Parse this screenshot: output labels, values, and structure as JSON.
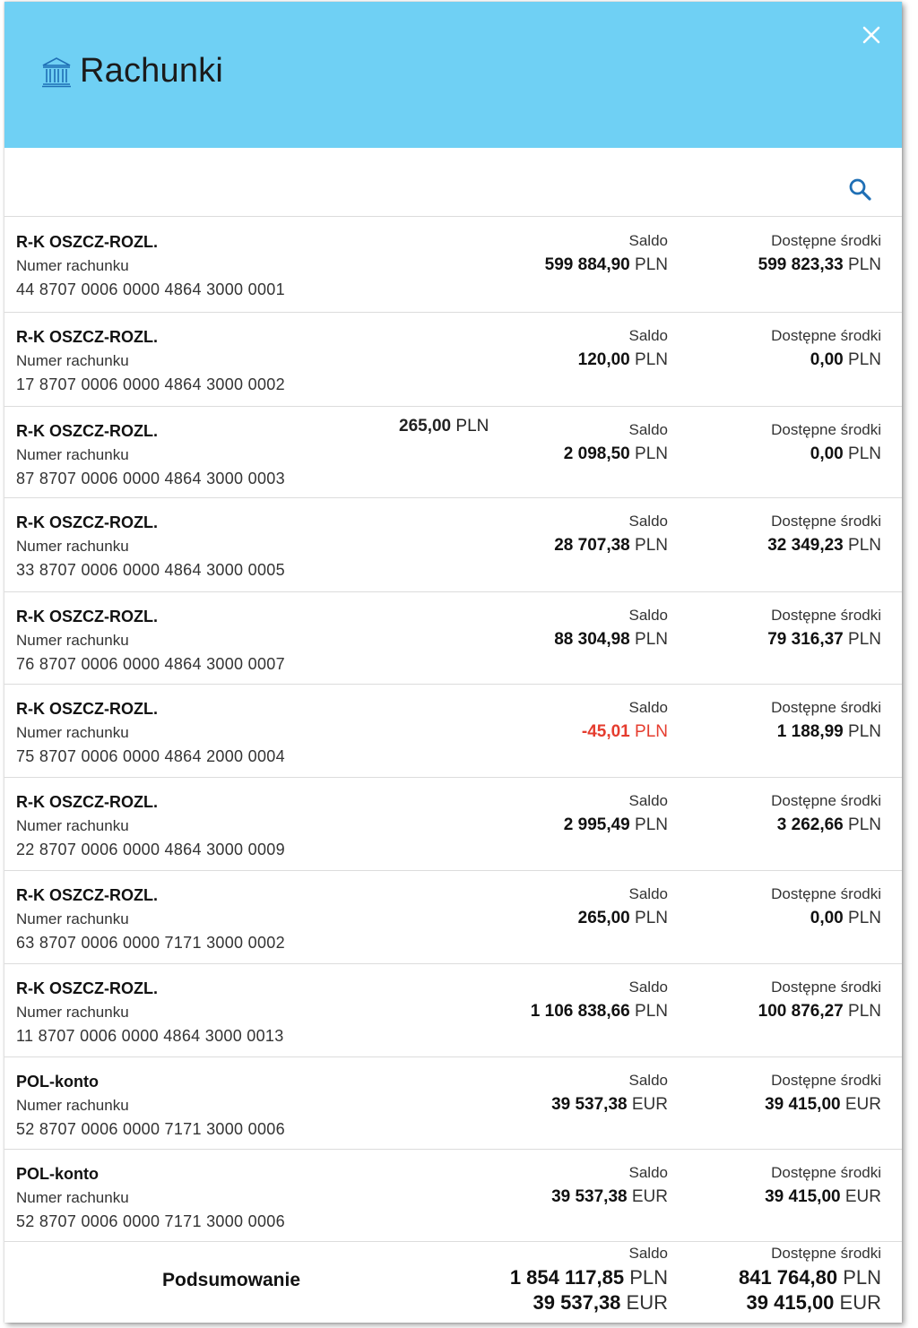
{
  "header": {
    "title": "Rachunki"
  },
  "labels": {
    "account_number": "Numer rachunku",
    "balance": "Saldo",
    "available": "Dostępne środki"
  },
  "accounts": [
    {
      "name": "R-K OSZCZ-ROZL.",
      "number": "44 8707 0006 0000 4864 3000 0001",
      "balance_value": "599 884,90",
      "balance_currency": "PLN",
      "available_value": "599 823,33",
      "available_currency": "PLN"
    },
    {
      "name": "R-K OSZCZ-ROZL.",
      "number": "17 8707 0006 0000 4864 3000 0002",
      "balance_value": "120,00",
      "balance_currency": "PLN",
      "available_value": "0,00",
      "available_currency": "PLN"
    },
    {
      "name": "R-K OSZCZ-ROZL.",
      "number": "87 8707 0006 0000 4864 3000 0003",
      "balance_value": "2 098,50",
      "balance_currency": "PLN",
      "available_value": "0,00",
      "available_currency": "PLN",
      "extra_value": "265,00",
      "extra_currency": "PLN"
    },
    {
      "name": "R-K OSZCZ-ROZL.",
      "number": "33 8707 0006 0000 4864 3000 0005",
      "balance_value": "28 707,38",
      "balance_currency": "PLN",
      "available_value": "32 349,23",
      "available_currency": "PLN"
    },
    {
      "name": "R-K OSZCZ-ROZL.",
      "number": "76 8707 0006 0000 4864 3000 0007",
      "balance_value": "88 304,98",
      "balance_currency": "PLN",
      "available_value": "79 316,37",
      "available_currency": "PLN"
    },
    {
      "name": "R-K OSZCZ-ROZL.",
      "number": "75 8707 0006 0000 4864 2000 0004",
      "balance_value": "-45,01",
      "balance_currency": "PLN",
      "available_value": "1 188,99",
      "available_currency": "PLN",
      "negative": true
    },
    {
      "name": "R-K OSZCZ-ROZL.",
      "number": "22 8707 0006 0000 4864 3000 0009",
      "balance_value": "2 995,49",
      "balance_currency": "PLN",
      "available_value": "3 262,66",
      "available_currency": "PLN"
    },
    {
      "name": "R-K OSZCZ-ROZL.",
      "number": "63 8707 0006 0000 7171 3000 0002",
      "balance_value": "265,00",
      "balance_currency": "PLN",
      "available_value": "0,00",
      "available_currency": "PLN"
    },
    {
      "name": "R-K OSZCZ-ROZL.",
      "number": "11 8707 0006 0000 4864 3000 0013",
      "balance_value": "1 106 838,66",
      "balance_currency": "PLN",
      "available_value": "100 876,27",
      "available_currency": "PLN"
    },
    {
      "name": "POL-konto",
      "number": "52 8707 0006 0000 7171 3000 0006",
      "balance_value": "39 537,38",
      "balance_currency": "EUR",
      "available_value": "39 415,00",
      "available_currency": "EUR"
    },
    {
      "name": "POL-konto",
      "number": "52 8707 0006 0000 7171 3000 0006",
      "balance_value": "39 537,38",
      "balance_currency": "EUR",
      "available_value": "39 415,00",
      "available_currency": "EUR"
    }
  ],
  "summary": {
    "title": "Podsumowanie",
    "balance_lines": [
      {
        "value": "1 854 117,85",
        "currency": "PLN"
      },
      {
        "value": "39 537,38",
        "currency": "EUR"
      }
    ],
    "available_lines": [
      {
        "value": "841 764,80",
        "currency": "PLN"
      },
      {
        "value": "39 415,00",
        "currency": "EUR"
      }
    ]
  },
  "colors": {
    "header_bg": "#6fd0f4",
    "accent": "#1f6fb5",
    "negative": "#e53c2e"
  }
}
